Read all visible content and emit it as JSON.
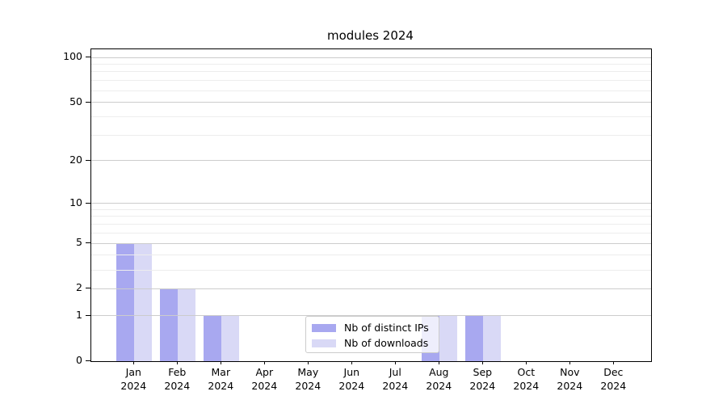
{
  "chart_data": {
    "type": "bar",
    "title": "modules 2024",
    "categories": [
      "Jan",
      "Feb",
      "Mar",
      "Apr",
      "May",
      "Jun",
      "Jul",
      "Aug",
      "Sep",
      "Oct",
      "Nov",
      "Dec"
    ],
    "year_label": "2024",
    "series": [
      {
        "name": "Nb of distinct IPs",
        "color": "#a8a8f0",
        "values": [
          5,
          2,
          1,
          0,
          0,
          0,
          0,
          1,
          1,
          0,
          0,
          0
        ]
      },
      {
        "name": "Nb of downloads",
        "color": "#d9d9f6",
        "values": [
          5,
          2,
          1,
          0,
          0,
          0,
          0,
          1,
          1,
          0,
          0,
          0
        ]
      }
    ],
    "yscale": "log10(1+x)",
    "yticks_major": [
      0,
      1,
      2,
      5,
      10,
      20,
      50,
      100
    ],
    "yticks_minor": [
      3,
      4,
      6,
      7,
      8,
      9,
      30,
      40,
      60,
      70,
      80,
      90
    ],
    "ylim": [
      0,
      113
    ],
    "xlabel": "",
    "ylabel": "",
    "grid": "horizontal major and minor gridlines",
    "legend_position": "inside lower center"
  },
  "colors": {
    "major_grid": "#cccccc",
    "minor_grid": "#ededed",
    "spine": "#000000",
    "tick": "#000000",
    "background": "#ffffff",
    "legend_border": "#cccccc",
    "legend_background": "rgba(255,255,255,0.8)"
  }
}
